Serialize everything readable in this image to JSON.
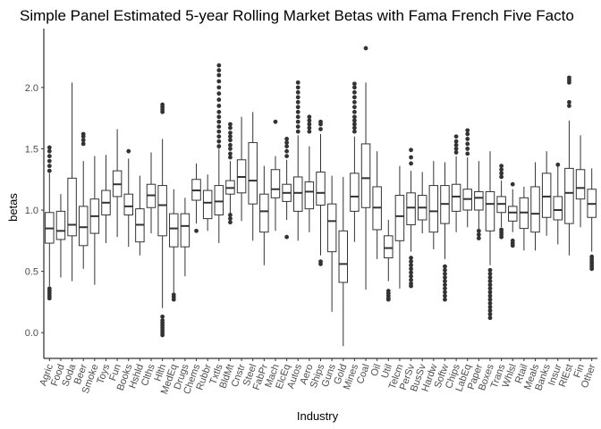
{
  "chart_data": {
    "type": "boxplot",
    "title": "Simple Panel Estimated 5-year Rolling Market Betas with Fama French Five Facto",
    "xlabel": "Industry",
    "ylabel": "betas",
    "ylim": [
      -0.21,
      2.48
    ],
    "yticks": [
      0.0,
      0.5,
      1.0,
      1.5,
      2.0
    ],
    "ytick_labels": [
      "0.0",
      "0.5",
      "1.0",
      "1.5",
      "2.0"
    ],
    "grid": false,
    "legend": "none",
    "colors": {
      "box_stroke": "#333333",
      "box_fill": "#ffffff",
      "axis": "#000000",
      "tick_text": "#4d4d4d"
    },
    "categories": [
      "Agric",
      "Food",
      "Soda",
      "Beer",
      "Smoke",
      "Toys",
      "Fun",
      "Books",
      "Hshld",
      "Clths",
      "Hlth",
      "MedEq",
      "Drugs",
      "Chems",
      "Rubbr",
      "Txtls",
      "BldMt",
      "Cnstr",
      "Steel",
      "FabPr",
      "Mach",
      "ElcEq",
      "Autos",
      "Aero",
      "Ships",
      "Guns",
      "Gold",
      "Mines",
      "Coal",
      "Oil",
      "Util",
      "Telcm",
      "PerSv",
      "BusSv",
      "Hardw",
      "Softw",
      "Chips",
      "LabEq",
      "Paper",
      "Boxes",
      "Trans",
      "Whlsl",
      "Rtail",
      "Meals",
      "Banks",
      "Insur",
      "RlEst",
      "Fin",
      "Other"
    ],
    "boxes": [
      {
        "lo": 0.38,
        "q1": 0.73,
        "med": 0.85,
        "q3": 0.98,
        "hi": 1.3,
        "outliers": [
          0.28,
          0.3,
          0.32,
          0.34,
          0.36,
          1.32,
          1.36,
          1.4,
          1.44,
          1.48,
          1.51
        ]
      },
      {
        "lo": 0.45,
        "q1": 0.76,
        "med": 0.83,
        "q3": 0.99,
        "hi": 1.13,
        "outliers": []
      },
      {
        "lo": 0.42,
        "q1": 0.79,
        "med": 0.88,
        "q3": 1.26,
        "hi": 2.04,
        "outliers": []
      },
      {
        "lo": 0.52,
        "q1": 0.71,
        "med": 0.86,
        "q3": 1.03,
        "hi": 1.4,
        "outliers": [
          1.54,
          1.57,
          1.6,
          1.62
        ]
      },
      {
        "lo": 0.39,
        "q1": 0.81,
        "med": 0.95,
        "q3": 1.09,
        "hi": 1.44,
        "outliers": []
      },
      {
        "lo": 0.73,
        "q1": 0.96,
        "med": 1.06,
        "q3": 1.16,
        "hi": 1.45,
        "outliers": []
      },
      {
        "lo": 0.78,
        "q1": 1.11,
        "med": 1.21,
        "q3": 1.32,
        "hi": 1.66,
        "outliers": []
      },
      {
        "lo": 0.7,
        "q1": 0.96,
        "med": 1.03,
        "q3": 1.13,
        "hi": 1.42,
        "outliers": [
          1.48
        ]
      },
      {
        "lo": 0.63,
        "q1": 0.74,
        "med": 0.88,
        "q3": 1.01,
        "hi": 1.28,
        "outliers": []
      },
      {
        "lo": 0.81,
        "q1": 1.02,
        "med": 1.12,
        "q3": 1.21,
        "hi": 1.47,
        "outliers": []
      },
      {
        "lo": 0.2,
        "q1": 0.79,
        "med": 1.04,
        "q3": 1.2,
        "hi": 1.58,
        "outliers": [
          -0.02,
          0.0,
          0.02,
          0.04,
          0.06,
          0.08,
          0.1,
          0.13,
          1.8,
          1.82,
          1.84,
          1.86
        ]
      },
      {
        "lo": 0.33,
        "q1": 0.7,
        "med": 0.85,
        "q3": 0.97,
        "hi": 1.17,
        "outliers": [
          0.27,
          0.29,
          0.31
        ]
      },
      {
        "lo": 0.46,
        "q1": 0.7,
        "med": 0.87,
        "q3": 0.97,
        "hi": 1.1,
        "outliers": []
      },
      {
        "lo": 0.89,
        "q1": 1.08,
        "med": 1.16,
        "q3": 1.25,
        "hi": 1.38,
        "outliers": [
          0.83
        ]
      },
      {
        "lo": 0.83,
        "q1": 0.93,
        "med": 1.06,
        "q3": 1.16,
        "hi": 1.29,
        "outliers": []
      },
      {
        "lo": 0.73,
        "q1": 0.96,
        "med": 1.07,
        "q3": 1.2,
        "hi": 1.5,
        "outliers": [
          1.52,
          1.56,
          1.6,
          1.64,
          1.68,
          1.72,
          1.76,
          1.8,
          1.85,
          1.9,
          1.95,
          2.0,
          2.05,
          2.1,
          2.14,
          2.18
        ]
      },
      {
        "lo": 0.97,
        "q1": 1.13,
        "med": 1.18,
        "q3": 1.24,
        "hi": 1.4,
        "outliers": [
          0.9,
          0.93,
          0.96,
          1.43,
          1.46,
          1.5,
          1.53,
          1.57,
          1.6,
          1.63,
          1.67,
          1.7
        ]
      },
      {
        "lo": 0.91,
        "q1": 1.14,
        "med": 1.27,
        "q3": 1.41,
        "hi": 1.76,
        "outliers": []
      },
      {
        "lo": 0.75,
        "q1": 1.05,
        "med": 1.24,
        "q3": 1.55,
        "hi": 1.8,
        "outliers": []
      },
      {
        "lo": 0.55,
        "q1": 0.82,
        "med": 0.99,
        "q3": 1.13,
        "hi": 1.36,
        "outliers": []
      },
      {
        "lo": 0.83,
        "q1": 1.1,
        "med": 1.17,
        "q3": 1.33,
        "hi": 1.44,
        "outliers": [
          1.72
        ]
      },
      {
        "lo": 0.92,
        "q1": 1.07,
        "med": 1.14,
        "q3": 1.21,
        "hi": 1.41,
        "outliers": [
          0.78,
          1.44,
          1.48,
          1.52,
          1.55,
          1.58
        ]
      },
      {
        "lo": 0.75,
        "q1": 0.99,
        "med": 1.14,
        "q3": 1.27,
        "hi": 1.61,
        "outliers": [
          1.64,
          1.68,
          1.72,
          1.76,
          1.8,
          1.84,
          1.88,
          1.92,
          1.96,
          2.0,
          2.04
        ]
      },
      {
        "lo": 0.82,
        "q1": 1.01,
        "med": 1.15,
        "q3": 1.23,
        "hi": 1.52,
        "outliers": [
          1.64,
          1.67,
          1.7,
          1.73,
          1.76
        ]
      },
      {
        "lo": 0.63,
        "q1": 1.04,
        "med": 1.14,
        "q3": 1.31,
        "hi": 1.62,
        "outliers": [
          0.56,
          0.58,
          1.66,
          1.7,
          1.72
        ]
      },
      {
        "lo": 0.17,
        "q1": 0.66,
        "med": 0.91,
        "q3": 1.05,
        "hi": 1.28,
        "outliers": []
      },
      {
        "lo": -0.11,
        "q1": 0.41,
        "med": 0.56,
        "q3": 0.83,
        "hi": 1.27,
        "outliers": []
      },
      {
        "lo": 0.74,
        "q1": 0.99,
        "med": 1.11,
        "q3": 1.3,
        "hi": 1.6,
        "outliers": [
          1.64,
          1.67,
          1.7,
          1.73,
          1.76,
          1.8,
          1.84,
          1.88,
          1.92,
          1.96,
          2.0,
          2.03
        ]
      },
      {
        "lo": 0.35,
        "q1": 1.02,
        "med": 1.26,
        "q3": 1.54,
        "hi": 2.04,
        "outliers": [
          2.32
        ]
      },
      {
        "lo": 0.6,
        "q1": 0.84,
        "med": 1.02,
        "q3": 1.19,
        "hi": 1.48,
        "outliers": []
      },
      {
        "lo": 0.42,
        "q1": 0.61,
        "med": 0.69,
        "q3": 0.79,
        "hi": 0.92,
        "outliers": [
          0.27,
          0.28,
          0.3,
          0.32,
          0.34
        ]
      },
      {
        "lo": 0.36,
        "q1": 0.75,
        "med": 0.95,
        "q3": 1.12,
        "hi": 1.36,
        "outliers": []
      },
      {
        "lo": 0.66,
        "q1": 0.88,
        "med": 1.02,
        "q3": 1.14,
        "hi": 1.32,
        "outliers": [
          0.38,
          0.4,
          0.43,
          0.46,
          0.49,
          0.52,
          0.55,
          0.58,
          0.61,
          1.38,
          1.43,
          1.49
        ]
      },
      {
        "lo": 0.81,
        "q1": 0.92,
        "med": 1.02,
        "q3": 1.12,
        "hi": 1.31,
        "outliers": []
      },
      {
        "lo": 0.68,
        "q1": 0.82,
        "med": 0.99,
        "q3": 1.2,
        "hi": 1.4,
        "outliers": []
      },
      {
        "lo": 0.6,
        "q1": 0.89,
        "med": 1.05,
        "q3": 1.2,
        "hi": 1.39,
        "outliers": [
          0.27,
          0.3,
          0.33,
          0.36,
          0.39,
          0.42,
          0.45,
          0.48,
          0.51,
          0.54
        ]
      },
      {
        "lo": 0.82,
        "q1": 0.99,
        "med": 1.11,
        "q3": 1.21,
        "hi": 1.44,
        "outliers": [
          1.47,
          1.5,
          1.53,
          1.56,
          1.6
        ]
      },
      {
        "lo": 0.86,
        "q1": 1.0,
        "med": 1.09,
        "q3": 1.17,
        "hi": 1.43,
        "outliers": [
          1.46,
          1.5,
          1.54,
          1.58,
          1.62,
          1.65
        ]
      },
      {
        "lo": 0.79,
        "q1": 1.0,
        "med": 1.1,
        "q3": 1.15,
        "hi": 1.4,
        "outliers": [
          0.77,
          0.8,
          0.83
        ]
      },
      {
        "lo": 0.55,
        "q1": 0.83,
        "med": 1.05,
        "q3": 1.15,
        "hi": 1.48,
        "outliers": [
          0.12,
          0.15,
          0.18,
          0.21,
          0.24,
          0.27,
          0.3,
          0.33,
          0.36,
          0.39,
          0.42,
          0.45,
          0.48,
          0.51
        ]
      },
      {
        "lo": 0.86,
        "q1": 0.98,
        "med": 1.05,
        "q3": 1.11,
        "hi": 1.24,
        "outliers": [
          0.78,
          0.8,
          0.82,
          0.84,
          1.27,
          1.3,
          1.33,
          1.36
        ]
      },
      {
        "lo": 0.82,
        "q1": 0.91,
        "med": 0.98,
        "q3": 1.03,
        "hi": 1.17,
        "outliers": [
          0.71,
          0.73,
          0.75,
          1.21
        ]
      },
      {
        "lo": 0.67,
        "q1": 0.85,
        "med": 0.98,
        "q3": 1.1,
        "hi": 1.19,
        "outliers": []
      },
      {
        "lo": 0.67,
        "q1": 0.82,
        "med": 0.97,
        "q3": 1.19,
        "hi": 1.39,
        "outliers": []
      },
      {
        "lo": 0.79,
        "q1": 0.94,
        "med": 1.11,
        "q3": 1.3,
        "hi": 1.48,
        "outliers": []
      },
      {
        "lo": 0.72,
        "q1": 0.92,
        "med": 1.0,
        "q3": 1.11,
        "hi": 1.36,
        "outliers": [
          1.37
        ]
      },
      {
        "lo": 0.63,
        "q1": 0.89,
        "med": 1.14,
        "q3": 1.34,
        "hi": 1.73,
        "outliers": [
          1.85,
          1.88,
          2.04,
          2.06,
          2.08
        ]
      },
      {
        "lo": 0.86,
        "q1": 1.09,
        "med": 1.18,
        "q3": 1.33,
        "hi": 1.61,
        "outliers": []
      },
      {
        "lo": 0.66,
        "q1": 0.94,
        "med": 1.05,
        "q3": 1.17,
        "hi": 1.34,
        "outliers": [
          0.52,
          0.54,
          0.56,
          0.58,
          0.6,
          0.62
        ]
      }
    ]
  }
}
